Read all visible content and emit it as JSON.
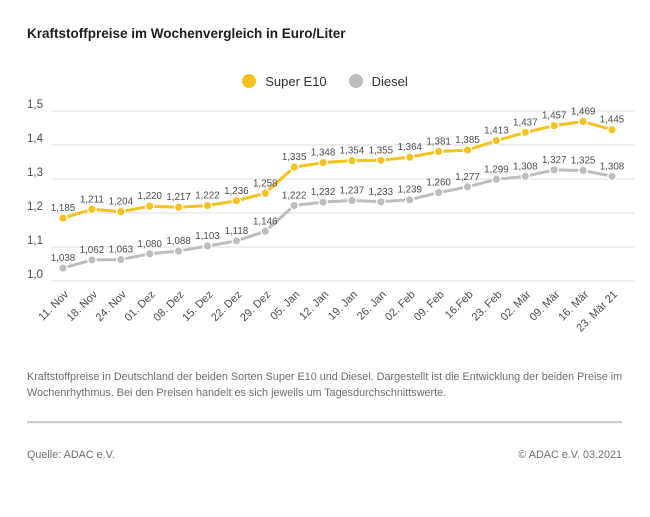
{
  "page": {
    "background": "#ffffff"
  },
  "header": {
    "title": "Kraftstoffpreise im Wochenvergleich in Euro/Liter"
  },
  "legend": {
    "items": [
      {
        "label": "Super E10",
        "color": "#F6C31E"
      },
      {
        "label": "Diesel",
        "color": "#BDBDBD"
      }
    ]
  },
  "chart_data": {
    "type": "line",
    "title": "Kraftstoffpreise im Wochenvergleich in Euro/Liter",
    "unit": "Euro/Liter",
    "categories": [
      "11. Nov",
      "18. Nov",
      "24. Nov",
      "01. Dez",
      "08. Dez",
      "15. Dez",
      "22. Dez",
      "29. Dez",
      "05. Jan",
      "12. Jan",
      "19. Jan",
      "26. Jan",
      "02. Feb",
      "09. Feb",
      "16.Feb",
      "23. Feb",
      "02. Mär",
      "09. Mär",
      "16. Mär",
      "23. Mär 21"
    ],
    "series": [
      {
        "name": "Super E10",
        "color": "#F6C31E",
        "values": [
          1.185,
          1.211,
          1.204,
          1.22,
          1.217,
          1.222,
          1.236,
          1.258,
          1.335,
          1.348,
          1.354,
          1.355,
          1.364,
          1.381,
          1.385,
          1.413,
          1.437,
          1.457,
          1.469,
          1.445
        ]
      },
      {
        "name": "Diesel",
        "color": "#BDBDBD",
        "values": [
          1.038,
          1.062,
          1.063,
          1.08,
          1.088,
          1.103,
          1.118,
          1.146,
          1.222,
          1.232,
          1.237,
          1.233,
          1.239,
          1.26,
          1.277,
          1.299,
          1.308,
          1.327,
          1.325,
          1.308
        ]
      }
    ],
    "ylim": [
      1.0,
      1.5
    ],
    "yticks": [
      "1,5",
      "1,4",
      "1,3",
      "1,2",
      "1,1",
      "1,0"
    ],
    "grid": "horizontal",
    "legend_position": "top-center",
    "decimal_separator": ",",
    "data_labels": true
  },
  "footnote": {
    "text": "Kraftstoffpreise in Deutschland der beiden Sorten Super E10 und Diesel. Dargestellt ist die Entwicklung der beiden Preise im Wochenrhythmus. Bei den Preisen handelt es sich jeweils um Tagesdurchschnittswerte."
  },
  "footer": {
    "source": "Quelle: ADAC e.V.",
    "copyright": "© ADAC e.V. 03.2021"
  }
}
